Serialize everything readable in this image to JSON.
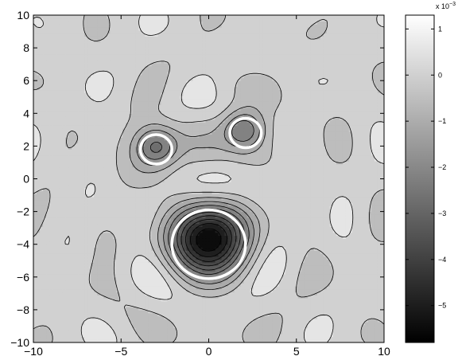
{
  "chart_data": {
    "type": "heatmap",
    "title": "",
    "xlabel": "",
    "ylabel": "",
    "xlim": [
      -10,
      10
    ],
    "ylim": [
      -10,
      10
    ],
    "x_ticks": [
      -10,
      -5,
      0,
      5,
      10
    ],
    "y_ticks": [
      -10,
      -8,
      -6,
      -4,
      -2,
      0,
      2,
      4,
      6,
      8,
      10
    ],
    "x_tick_labels": [
      "−10",
      "−5",
      "0",
      "5",
      "10"
    ],
    "y_tick_labels": [
      "−10",
      "−8",
      "−6",
      "−4",
      "−2",
      "0",
      "2",
      "4",
      "6",
      "8",
      "10"
    ],
    "colormap": "gray",
    "colorbar": {
      "exponent_label": "x 10",
      "exponent_power": "−3",
      "range": [
        -5.8,
        1.3
      ],
      "ticks": [
        1,
        0,
        -1,
        -2,
        -3,
        -4,
        -5
      ],
      "tick_labels": [
        "1",
        "0",
        "−1",
        "−2",
        "−3",
        "−4",
        "−5"
      ]
    },
    "features": [
      {
        "kind": "minimum",
        "x": 0,
        "y": -3.7,
        "value": -5.6
      },
      {
        "kind": "minimum",
        "x": -3,
        "y": 2,
        "value": -3.8
      },
      {
        "kind": "minimum",
        "x": 2,
        "y": 3,
        "value": -3.5
      }
    ],
    "circles": [
      {
        "x": 0,
        "y": -4,
        "r": 2.1
      },
      {
        "x": -3,
        "y": 1.8,
        "r": 0.9
      },
      {
        "x": 2.1,
        "y": 2.8,
        "r": 0.9
      }
    ],
    "contour_lines": "black",
    "circle_color": "#ffffff",
    "background_color": "#c8c8c8"
  }
}
